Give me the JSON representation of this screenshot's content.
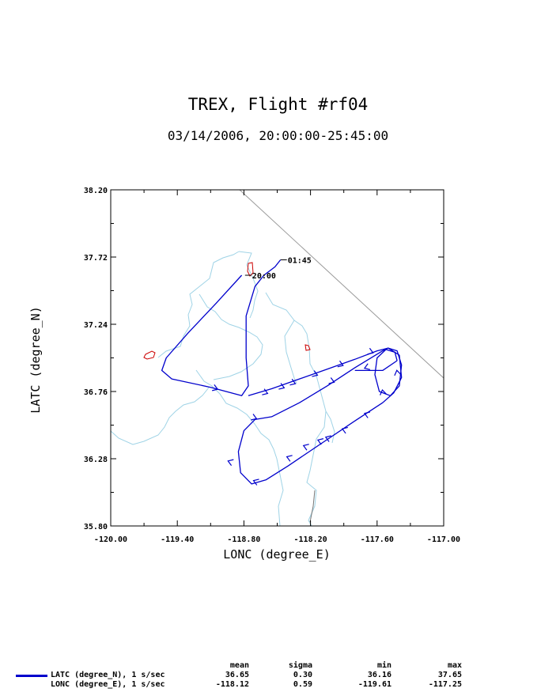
{
  "header": {
    "title": "TREX, Flight #rf04",
    "subtitle": "03/14/2006, 20:00:00-25:45:00"
  },
  "chart_data": {
    "type": "line",
    "xlabel": "LONC (degree_E)",
    "ylabel": "LATC (degree_N)",
    "xlim": [
      -120.0,
      -117.0
    ],
    "ylim": [
      35.8,
      38.2
    ],
    "x_ticks": [
      "-120.00",
      "-119.40",
      "-118.80",
      "-118.20",
      "-117.60",
      "-117.00"
    ],
    "y_ticks": [
      "35.80",
      "36.28",
      "36.76",
      "37.24",
      "37.72",
      "38.20"
    ],
    "annotations": [
      {
        "text": "20:00",
        "x": -118.79,
        "y": 37.59
      },
      {
        "text": "01:45",
        "x": -118.47,
        "y": 37.7
      }
    ],
    "colors": {
      "track": "#0000cc",
      "rivers": "#9fd3e6",
      "lakes": "#cc0000",
      "border": "#999999"
    },
    "series": [
      {
        "name": "flight track",
        "color": "#0000cc",
        "x": [
          -118.82,
          -119.05,
          -119.3,
          -119.5,
          -119.54,
          -119.45,
          -119.1,
          -118.82,
          -118.76,
          -118.78,
          -118.78,
          -118.7,
          -118.62,
          -118.52,
          -118.47
        ],
        "y": [
          37.59,
          37.39,
          37.18,
          37.0,
          36.91,
          36.85,
          36.79,
          36.73,
          36.8,
          37.0,
          37.3,
          37.51,
          37.59,
          37.65,
          37.7
        ],
        "loops": [
          {
            "x": [
              -118.76,
              -118.55,
              -118.3,
              -118.05,
              -117.8,
              -117.6,
              -117.5,
              -117.4,
              -117.38,
              -117.45,
              -117.55,
              -117.8,
              -118.1,
              -118.4,
              -118.6,
              -118.73,
              -118.83,
              -118.85,
              -118.8,
              -118.7,
              -118.55,
              -118.3,
              -118.05,
              -117.8,
              -117.55,
              -117.5
            ],
            "y": [
              36.73,
              36.78,
              36.85,
              36.92,
              36.99,
              37.05,
              37.07,
              37.02,
              36.86,
              36.75,
              36.68,
              36.55,
              36.39,
              36.23,
              36.13,
              36.1,
              36.18,
              36.33,
              36.48,
              36.56,
              36.58,
              36.68,
              36.8,
              36.93,
              37.05,
              37.07
            ]
          },
          {
            "x": [
              -117.5,
              -117.42,
              -117.38,
              -117.4,
              -117.48,
              -117.58,
              -117.62,
              -117.6,
              -117.52,
              -117.44,
              -117.42
            ],
            "y": [
              37.07,
              37.05,
              36.95,
              36.8,
              36.73,
              36.76,
              36.88,
              37.0,
              37.06,
              37.04,
              36.98
            ]
          },
          {
            "x": [
              -117.42,
              -117.55,
              -117.68,
              -117.8
            ],
            "y": [
              36.98,
              36.91,
              36.91,
              36.91
            ]
          }
        ]
      }
    ],
    "arrows": [
      [
        -119.05,
        36.78,
        1
      ],
      [
        -118.6,
        36.75,
        1
      ],
      [
        -118.45,
        36.79,
        1
      ],
      [
        -118.35,
        36.82,
        1
      ],
      [
        -118.15,
        36.88,
        1
      ],
      [
        -117.92,
        36.95,
        1
      ],
      [
        -117.65,
        37.04,
        1
      ],
      [
        -117.42,
        36.9,
        2
      ],
      [
        -117.55,
        36.76,
        2
      ],
      [
        -117.7,
        36.6,
        3
      ],
      [
        -117.9,
        36.49,
        3
      ],
      [
        -118.05,
        36.43,
        3
      ],
      [
        -118.12,
        36.41,
        3
      ],
      [
        -118.25,
        36.37,
        3
      ],
      [
        -118.4,
        36.29,
        3
      ],
      [
        -118.7,
        36.12,
        3
      ],
      [
        -118.93,
        36.26,
        3
      ],
      [
        -118.7,
        36.57,
        1
      ],
      [
        -118.0,
        36.83,
        1
      ],
      [
        -117.7,
        36.93,
        4
      ]
    ]
  },
  "stats": {
    "headers": [
      "mean",
      "sigma",
      "min",
      "max"
    ],
    "rows": [
      {
        "name": "LATC (degree_N), 1 s/sec",
        "mean": "36.65",
        "sigma": "0.30",
        "min": "36.16",
        "max": "37.65"
      },
      {
        "name": "LONC (degree_E), 1 s/sec",
        "mean": "-118.12",
        "sigma": "0.59",
        "min": "-119.61",
        "max": "-117.25"
      }
    ]
  }
}
